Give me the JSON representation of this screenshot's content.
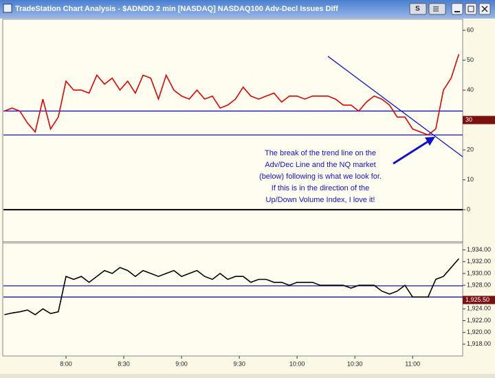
{
  "window_title": "TradeStation Chart Analysis - $ADNDD 2 min [NASDAQ] NASDAQ100 Adv-Decl Issues Diff",
  "window_buttons": [
    "S"
  ],
  "chart_data": [
    {
      "type": "line",
      "x": [
        448,
        452,
        456,
        460,
        464,
        468,
        472,
        476,
        480,
        484,
        488,
        492,
        496,
        500,
        504,
        508,
        512,
        516,
        520,
        524,
        528,
        532,
        536,
        540,
        544,
        548,
        552,
        556,
        560,
        564,
        568,
        572,
        576,
        580,
        584,
        588,
        592,
        596,
        600,
        604,
        608,
        612,
        616,
        620,
        624,
        628,
        632,
        636,
        640,
        644,
        648,
        652,
        656,
        660,
        664,
        668,
        672,
        676,
        680,
        684
      ],
      "series": [
        {
          "color": "#e00000",
          "values": [
            33,
            34,
            33,
            29,
            26,
            37,
            27,
            31,
            43,
            40,
            40,
            39,
            45,
            42,
            44,
            40,
            43,
            39,
            45,
            44,
            37,
            45,
            40,
            38,
            37,
            40,
            37,
            38,
            34,
            35,
            37,
            41,
            38,
            37,
            38,
            39,
            36,
            38,
            38,
            37,
            38,
            38,
            38,
            37,
            35,
            35,
            33,
            36,
            38,
            37,
            35,
            31,
            31,
            27,
            26,
            25,
            27,
            40,
            44,
            52
          ]
        }
      ],
      "xlim": [
        447.5,
        686
      ],
      "ylim": [
        -10.3,
        63.7
      ],
      "yticks": [
        60,
        50,
        40,
        20,
        10,
        0
      ],
      "price_marker": 30,
      "reference_lines": [
        {
          "value": 33,
          "color": "#1010d0"
        },
        {
          "value": 25,
          "color": "#1010d0"
        },
        {
          "value": 0,
          "color": "#000000"
        }
      ],
      "trend_line": {
        "x": [
          616,
          686
        ],
        "values": [
          51.3,
          17.7
        ],
        "color": "#1010d0"
      },
      "annotation": {
        "color": "#1010d0",
        "lines": [
          "The break of the trend line on the",
          "Adv/Dec Line and the NQ market",
          "(below) following is what we look for.",
          "If this is in the direction of the",
          "Up/Down Volume Index, I love it!"
        ]
      }
    },
    {
      "type": "line",
      "x": [
        448,
        452,
        456,
        460,
        464,
        468,
        472,
        476,
        480,
        484,
        488,
        492,
        496,
        500,
        504,
        508,
        512,
        516,
        520,
        524,
        528,
        532,
        536,
        540,
        544,
        548,
        552,
        556,
        560,
        564,
        568,
        572,
        576,
        580,
        584,
        588,
        592,
        596,
        600,
        604,
        608,
        612,
        616,
        620,
        624,
        628,
        632,
        636,
        640,
        644,
        648,
        652,
        656,
        660,
        664,
        668,
        672,
        676,
        680,
        684
      ],
      "series": [
        {
          "color": "#000000",
          "values": [
            1923,
            1923.3,
            1923.5,
            1923.8,
            1923,
            1924,
            1923.2,
            1923.5,
            1929.5,
            1929,
            1929.5,
            1928.5,
            1929.5,
            1930.5,
            1930,
            1931,
            1930.5,
            1929.5,
            1930.5,
            1930,
            1929.5,
            1930,
            1930.5,
            1929.5,
            1930,
            1930.5,
            1929.5,
            1929,
            1930,
            1929,
            1929.5,
            1929.5,
            1928.5,
            1929,
            1929,
            1928.5,
            1928.5,
            1928,
            1928.5,
            1928.5,
            1928.5,
            1928,
            1928,
            1928,
            1928,
            1927.5,
            1928,
            1928,
            1928,
            1927,
            1926.5,
            1927,
            1928,
            1926,
            1926,
            1926,
            1929,
            1929.5,
            1931,
            1932.5
          ]
        }
      ],
      "xlim": [
        447.5,
        686
      ],
      "ylim": [
        1916,
        1935
      ],
      "yticks": [
        {
          "value": 1934,
          "label": "1,934.00"
        },
        {
          "value": 1932,
          "label": "1,932.00"
        },
        {
          "value": 1930,
          "label": "1,930.00"
        },
        {
          "value": 1928,
          "label": "1,928.00"
        },
        {
          "value": 1924,
          "label": "1,924.00"
        },
        {
          "value": 1922,
          "label": "1,922.00"
        },
        {
          "value": 1920,
          "label": "1,920.00"
        },
        {
          "value": 1918,
          "label": "1,918.00"
        }
      ],
      "price_marker": {
        "value": 1925.5,
        "label": "1,925.50"
      },
      "reference_lines": [
        {
          "value": 1927.9,
          "color": "#1010d0"
        },
        {
          "value": 1926,
          "color": "#1010d0"
        }
      ],
      "xticks": [
        {
          "value": 480,
          "label": "8:00"
        },
        {
          "value": 510,
          "label": "8:30"
        },
        {
          "value": 540,
          "label": "9:00"
        },
        {
          "value": 570,
          "label": "9:30"
        },
        {
          "value": 600,
          "label": "10:00"
        },
        {
          "value": 630,
          "label": "10:30"
        },
        {
          "value": 660,
          "label": "11:00"
        }
      ]
    }
  ]
}
